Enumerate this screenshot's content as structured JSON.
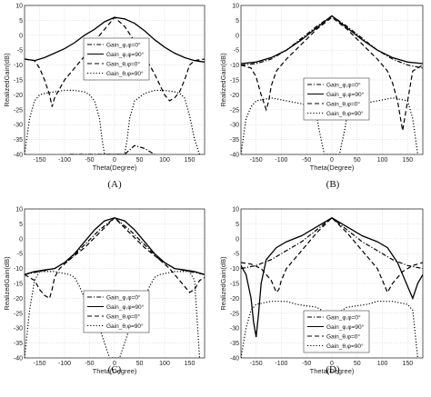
{
  "chart_data": [
    {
      "type": "line",
      "caption": "(A)",
      "xlabel": "Theta(Degree)",
      "ylabel": "RealizedGain(dB)",
      "xlim": [
        -180,
        180
      ],
      "ylim": [
        -40,
        10
      ],
      "xticks": [
        -150,
        -100,
        -50,
        0,
        50,
        100,
        150
      ],
      "yticks": [
        10,
        5,
        0,
        -5,
        -10,
        -15,
        -20,
        -25,
        -30,
        -35,
        -40
      ],
      "grid": true,
      "legend": "center-right",
      "series": [
        {
          "name": "Gain_φ,φ=0°",
          "style": "dashdot",
          "x": [
            -90,
            -80,
            -60,
            -40,
            -20,
            0,
            20,
            40,
            60,
            80
          ],
          "y": [
            -40,
            -40,
            -40,
            -40,
            -40,
            -40,
            -40,
            -37,
            -38,
            -40
          ]
        },
        {
          "name": "Gain_φ,φ=90°",
          "style": "solid",
          "x": [
            -180,
            -160,
            -140,
            -120,
            -100,
            -80,
            -60,
            -40,
            -20,
            0,
            20,
            40,
            60,
            80,
            100,
            120,
            140,
            160,
            180
          ],
          "y": [
            -8,
            -8.5,
            -7.5,
            -6,
            -4.5,
            -2.5,
            0,
            2,
            4.5,
            6,
            5.5,
            4,
            1.5,
            -1.5,
            -4,
            -6,
            -7.5,
            -8.5,
            -9
          ]
        },
        {
          "name": "Gain_θ,φ=0°",
          "style": "dashed",
          "x": [
            -180,
            -160,
            -150,
            -140,
            -130,
            -125,
            -120,
            -100,
            -80,
            -60,
            -40,
            -20,
            0,
            20,
            40,
            60,
            80,
            100,
            110,
            120,
            130,
            140,
            150,
            160,
            180
          ],
          "y": [
            -8,
            -8.5,
            -11,
            -15,
            -20,
            -24,
            -21,
            -15,
            -11,
            -7,
            -2,
            2,
            6,
            3,
            -2,
            -7,
            -13,
            -20,
            -22,
            -21,
            -19,
            -15,
            -10,
            -8.5,
            -8
          ]
        },
        {
          "name": "Gain_θ,φ=90°",
          "style": "dotted",
          "x": [
            -180,
            -170,
            -160,
            -150,
            -140,
            -120,
            -100,
            -80,
            -60,
            -50,
            -40,
            -30,
            -25,
            -20,
            20,
            25,
            30,
            40,
            60,
            80,
            100,
            120,
            130,
            140,
            150,
            160,
            170
          ],
          "y": [
            -40,
            -28,
            -22,
            -20,
            -19.5,
            -19,
            -18.5,
            -18.5,
            -19,
            -20,
            -22,
            -28,
            -35,
            -40,
            -40,
            -35,
            -28,
            -22,
            -19.5,
            -18.5,
            -18.5,
            -19,
            -19.5,
            -21,
            -27,
            -35,
            -40
          ]
        }
      ]
    },
    {
      "type": "line",
      "caption": "(B)",
      "xlabel": "Theta(Degree)",
      "ylabel": "RealizedGain(dB)",
      "xlim": [
        -180,
        180
      ],
      "ylim": [
        -40,
        10
      ],
      "xticks": [
        -150,
        -100,
        -50,
        0,
        50,
        100,
        150
      ],
      "yticks": [
        10,
        5,
        0,
        -5,
        -10,
        -15,
        -20,
        -25,
        -30,
        -35,
        -40
      ],
      "grid": true,
      "legend": "center-right",
      "series": [
        {
          "name": "Gain_φ,φ=0°",
          "style": "dashdot",
          "x": [
            -180,
            -150,
            -120,
            -90,
            -60,
            -30,
            0,
            30,
            60,
            90,
            120,
            150,
            180
          ],
          "y": [
            -10,
            -9.5,
            -8,
            -5,
            -1,
            3,
            6.5,
            3,
            -1,
            -5,
            -8,
            -10,
            -11
          ]
        },
        {
          "name": "Gain_φ,φ=90°",
          "style": "solid",
          "x": [
            -180,
            -150,
            -120,
            -90,
            -60,
            -30,
            0,
            30,
            60,
            90,
            120,
            150,
            180
          ],
          "y": [
            -9.5,
            -9,
            -7.5,
            -5,
            -1.5,
            2.5,
            6.5,
            2.5,
            -1.5,
            -5,
            -7.5,
            -9,
            -9.5
          ]
        },
        {
          "name": "Gain_θ,φ=0°",
          "style": "dashed",
          "x": [
            -180,
            -160,
            -150,
            -140,
            -130,
            -125,
            -120,
            -110,
            -90,
            -60,
            -30,
            0,
            30,
            60,
            90,
            110,
            120,
            130,
            140,
            150,
            160,
            180
          ],
          "y": [
            -10,
            -11,
            -14,
            -20,
            -25,
            -22,
            -17,
            -12,
            -8,
            -3,
            2,
            6,
            2,
            -3,
            -8,
            -12,
            -16,
            -22,
            -32,
            -22,
            -12,
            -10
          ]
        },
        {
          "name": "Gain_θ,φ=90°",
          "style": "dotted",
          "x": [
            -180,
            -170,
            -160,
            -150,
            -120,
            -90,
            -60,
            -40,
            -30,
            -25,
            -20,
            -15,
            15,
            20,
            25,
            30,
            40,
            60,
            90,
            120,
            150,
            160,
            170
          ],
          "y": [
            -40,
            -28,
            -24,
            -22,
            -21,
            -22,
            -23,
            -24,
            -27,
            -32,
            -36,
            -40,
            -40,
            -36,
            -32,
            -27,
            -24,
            -23,
            -22,
            -21,
            -22,
            -28,
            -40
          ]
        }
      ]
    },
    {
      "type": "line",
      "caption": "(C)",
      "xlabel": "Theta(Degree)",
      "ylabel": "RealizedGain(dB)",
      "xlim": [
        -180,
        180
      ],
      "ylim": [
        -40,
        10
      ],
      "xticks": [
        -150,
        -100,
        -50,
        0,
        50,
        100,
        150
      ],
      "yticks": [
        10,
        5,
        0,
        -5,
        -10,
        -15,
        -20,
        -25,
        -30,
        -35,
        -40
      ],
      "grid": true,
      "legend": "center-right",
      "series": [
        {
          "name": "Gain_φ,φ=0°",
          "style": "dashdot",
          "x": [
            -180,
            -150,
            -120,
            -90,
            -60,
            -30,
            0,
            30,
            60,
            90,
            120,
            150,
            180
          ],
          "y": [
            -12,
            -11,
            -10,
            -7,
            -2,
            3,
            7,
            3,
            -2,
            -7,
            -10,
            -11,
            -12
          ]
        },
        {
          "name": "Gain_φ,φ=90°",
          "style": "solid",
          "x": [
            -180,
            -160,
            -140,
            -120,
            -100,
            -80,
            -60,
            -40,
            -20,
            0,
            20,
            40,
            60,
            80,
            100,
            120,
            140,
            160,
            180
          ],
          "y": [
            -12,
            -11,
            -10.5,
            -10,
            -8,
            -5,
            -1,
            3,
            6,
            7,
            6,
            3,
            -1,
            -5,
            -8,
            -10,
            -10.5,
            -11,
            -12
          ]
        },
        {
          "name": "Gain_θ,φ=0°",
          "style": "dashed",
          "x": [
            -180,
            -160,
            -150,
            -140,
            -130,
            -125,
            -120,
            -110,
            -90,
            -60,
            -30,
            0,
            30,
            60,
            90,
            110,
            120,
            130,
            140,
            150,
            160,
            170,
            180
          ],
          "y": [
            -12,
            -14,
            -17,
            -19,
            -20,
            -17,
            -13,
            -10,
            -7,
            -3,
            2,
            7,
            2,
            -3,
            -7,
            -10,
            -12,
            -14,
            -16,
            -18,
            -17,
            -14,
            -13
          ]
        },
        {
          "name": "Gain_θ,φ=90°",
          "style": "dotted",
          "x": [
            -180,
            -170,
            -160,
            -150,
            -120,
            -90,
            -80,
            -70,
            -60,
            -50,
            -40,
            -30,
            -20,
            -10,
            10,
            20,
            30,
            40,
            50,
            60,
            70,
            80,
            90,
            120,
            150,
            160,
            170
          ],
          "y": [
            -40,
            -24,
            -14,
            -11,
            -11,
            -12,
            -13,
            -16,
            -20,
            -22,
            -26,
            -30,
            -35,
            -40,
            -40,
            -35,
            -30,
            -26,
            -22,
            -20,
            -16,
            -13,
            -12,
            -11,
            -11,
            -14,
            -40
          ]
        }
      ]
    },
    {
      "type": "line",
      "caption": "(D)",
      "xlabel": "Theta(Degree)",
      "ylabel": "RealizedGain(dB)",
      "xlim": [
        -180,
        180
      ],
      "ylim": [
        -40,
        10
      ],
      "xticks": [
        -150,
        -100,
        -50,
        0,
        50,
        100,
        150
      ],
      "yticks": [
        10,
        5,
        0,
        -5,
        -10,
        -15,
        -20,
        -25,
        -30,
        -35,
        -40
      ],
      "grid": true,
      "legend": "bottom-right",
      "series": [
        {
          "name": "Gain_φ,φ=0°",
          "style": "dashdot",
          "x": [
            -180,
            -150,
            -120,
            -90,
            -60,
            -30,
            0,
            30,
            60,
            90,
            120,
            150,
            180
          ],
          "y": [
            -10,
            -9,
            -7,
            -4,
            -1,
            3,
            7,
            3,
            -1,
            -4,
            -7,
            -9,
            -10
          ]
        },
        {
          "name": "Gain_φ,φ=90°",
          "style": "solid",
          "x": [
            -180,
            -170,
            -160,
            -155,
            -150,
            -145,
            -140,
            -130,
            -110,
            -90,
            -60,
            -30,
            0,
            30,
            60,
            90,
            110,
            130,
            140,
            150,
            160,
            170,
            180
          ],
          "y": [
            -9,
            -12,
            -20,
            -28,
            -33,
            -25,
            -15,
            -7,
            -3,
            -1,
            1,
            4,
            7,
            4,
            1,
            -1,
            -3,
            -8,
            -12,
            -16,
            -20,
            -15,
            -12
          ]
        },
        {
          "name": "Gain_θ,φ=0°",
          "style": "dashed",
          "x": [
            -180,
            -160,
            -140,
            -120,
            -110,
            -105,
            -100,
            -90,
            -60,
            -30,
            0,
            30,
            60,
            90,
            100,
            110,
            120,
            140,
            160,
            180
          ],
          "y": [
            -8,
            -8.5,
            -10,
            -14,
            -18,
            -17,
            -14,
            -10,
            -4,
            2,
            7,
            2,
            -4,
            -10,
            -14,
            -18,
            -15,
            -11,
            -9,
            -8
          ]
        },
        {
          "name": "Gain_θ,φ=90°",
          "style": "dotted",
          "x": [
            -180,
            -170,
            -160,
            -150,
            -120,
            -90,
            -70,
            -50,
            -30,
            -20,
            -10,
            0,
            10,
            20,
            30,
            50,
            70,
            90,
            120,
            150,
            160,
            170
          ],
          "y": [
            -40,
            -30,
            -24,
            -22,
            -21,
            -21,
            -22,
            -22.5,
            -23,
            -24,
            -26,
            -28,
            -26,
            -24,
            -23,
            -22.5,
            -22,
            -21,
            -21,
            -22,
            -24,
            -40
          ]
        }
      ]
    }
  ]
}
